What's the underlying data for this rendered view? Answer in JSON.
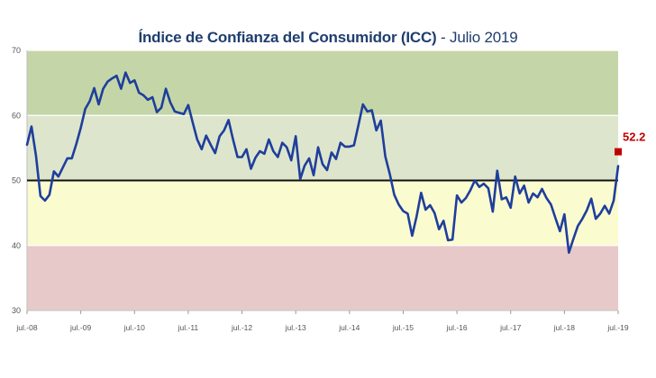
{
  "chart_data": {
    "type": "line",
    "title_main": "Índice de Confianza del Consumidor (ICC)",
    "title_sep": " - ",
    "title_period": "Julio 2019",
    "ylim": [
      30,
      70
    ],
    "yticks": [
      "30",
      "40",
      "50",
      "60",
      "70"
    ],
    "reference_line": 50,
    "bands": [
      {
        "from": 30,
        "to": 40,
        "color": "#e8c9c9"
      },
      {
        "from": 40,
        "to": 50,
        "color": "#fbfbd0"
      },
      {
        "from": 50,
        "to": 60,
        "color": "#dde6cc"
      },
      {
        "from": 60,
        "to": 70,
        "color": "#c4d6a8"
      }
    ],
    "xticks": [
      "jul.-08",
      "jul.-09",
      "jul.-10",
      "jul.-11",
      "jul.-12",
      "jul.-13",
      "jul.-14",
      "jul.-15",
      "jul.-16",
      "jul.-17",
      "jul.-18",
      "jul.-19"
    ],
    "series": [
      {
        "name": "ICC",
        "color": "#1f3e9c",
        "start_label": "jul.-08",
        "frequency": "monthly",
        "values": [
          55.5,
          58.3,
          53.8,
          47.6,
          46.9,
          47.8,
          51.4,
          50.6,
          52.0,
          53.4,
          53.4,
          55.6,
          58.1,
          61.0,
          62.2,
          64.2,
          61.7,
          64.1,
          65.2,
          65.7,
          66.1,
          64.1,
          66.6,
          65.0,
          65.4,
          63.5,
          63.1,
          62.4,
          62.8,
          60.5,
          61.2,
          64.1,
          62.0,
          60.6,
          60.4,
          60.2,
          61.6,
          58.9,
          56.3,
          54.8,
          56.9,
          55.5,
          54.2,
          56.8,
          57.7,
          59.3,
          56.3,
          53.6,
          53.6,
          54.8,
          51.8,
          53.5,
          54.5,
          54.1,
          56.3,
          54.5,
          53.6,
          55.8,
          55.1,
          53.1,
          56.8,
          50.2,
          52.3,
          53.4,
          50.8,
          55.1,
          52.5,
          51.6,
          54.3,
          53.3,
          55.8,
          55.2,
          55.2,
          55.4,
          58.5,
          61.7,
          60.6,
          60.8,
          57.7,
          59.2,
          53.7,
          51.0,
          47.8,
          46.3,
          45.3,
          44.9,
          41.5,
          44.5,
          48.1,
          45.5,
          46.2,
          45.0,
          42.5,
          43.8,
          40.8,
          40.9,
          47.7,
          46.6,
          47.3,
          48.5,
          50.0,
          49.0,
          49.5,
          48.8,
          45.2,
          51.5,
          47.1,
          47.4,
          45.8,
          50.6,
          48.0,
          49.2,
          46.6,
          48.0,
          47.4,
          48.7,
          47.3,
          46.3,
          44.2,
          42.2,
          44.8,
          38.9,
          41.0,
          43.0,
          44.1,
          45.4,
          47.2,
          44.1,
          44.9,
          46.1,
          44.9,
          46.9,
          52.2
        ]
      }
    ],
    "last_value_label": "52.2",
    "last_marker_color": "#c00000"
  }
}
